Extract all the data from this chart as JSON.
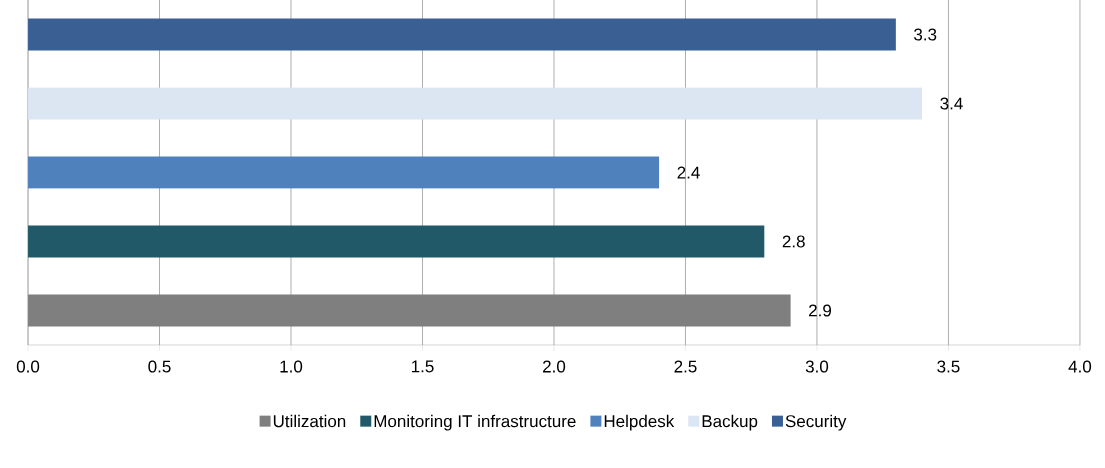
{
  "chart_data": {
    "type": "bar",
    "orientation": "horizontal",
    "stacked": true,
    "categories": [
      null,
      null,
      null,
      null,
      null
    ],
    "series": [
      {
        "name": "Utilization",
        "color": "#7f7f7f",
        "values": [
          null,
          null,
          null,
          null,
          2.9
        ]
      },
      {
        "name": "Monitoring IT infrastructure",
        "color": "#215968",
        "values": [
          null,
          null,
          null,
          2.8,
          null
        ]
      },
      {
        "name": "Helpdesk",
        "color": "#4f81bd",
        "values": [
          null,
          null,
          2.4,
          null,
          null
        ]
      },
      {
        "name": "Backup",
        "color": "#dce6f2",
        "values": [
          null,
          3.4,
          null,
          null,
          null
        ]
      },
      {
        "name": "Security",
        "color": "#3a5f93",
        "values": [
          3.3,
          null,
          null,
          null,
          null
        ]
      }
    ],
    "xlim": [
      0,
      4
    ],
    "xticks": [
      "0.0",
      "0.5",
      "1.0",
      "1.5",
      "2.0",
      "2.5",
      "3.0",
      "3.5",
      "4.0"
    ],
    "grid": "x",
    "legend": "bottom",
    "data_labels": true,
    "tick_labels": "x"
  }
}
